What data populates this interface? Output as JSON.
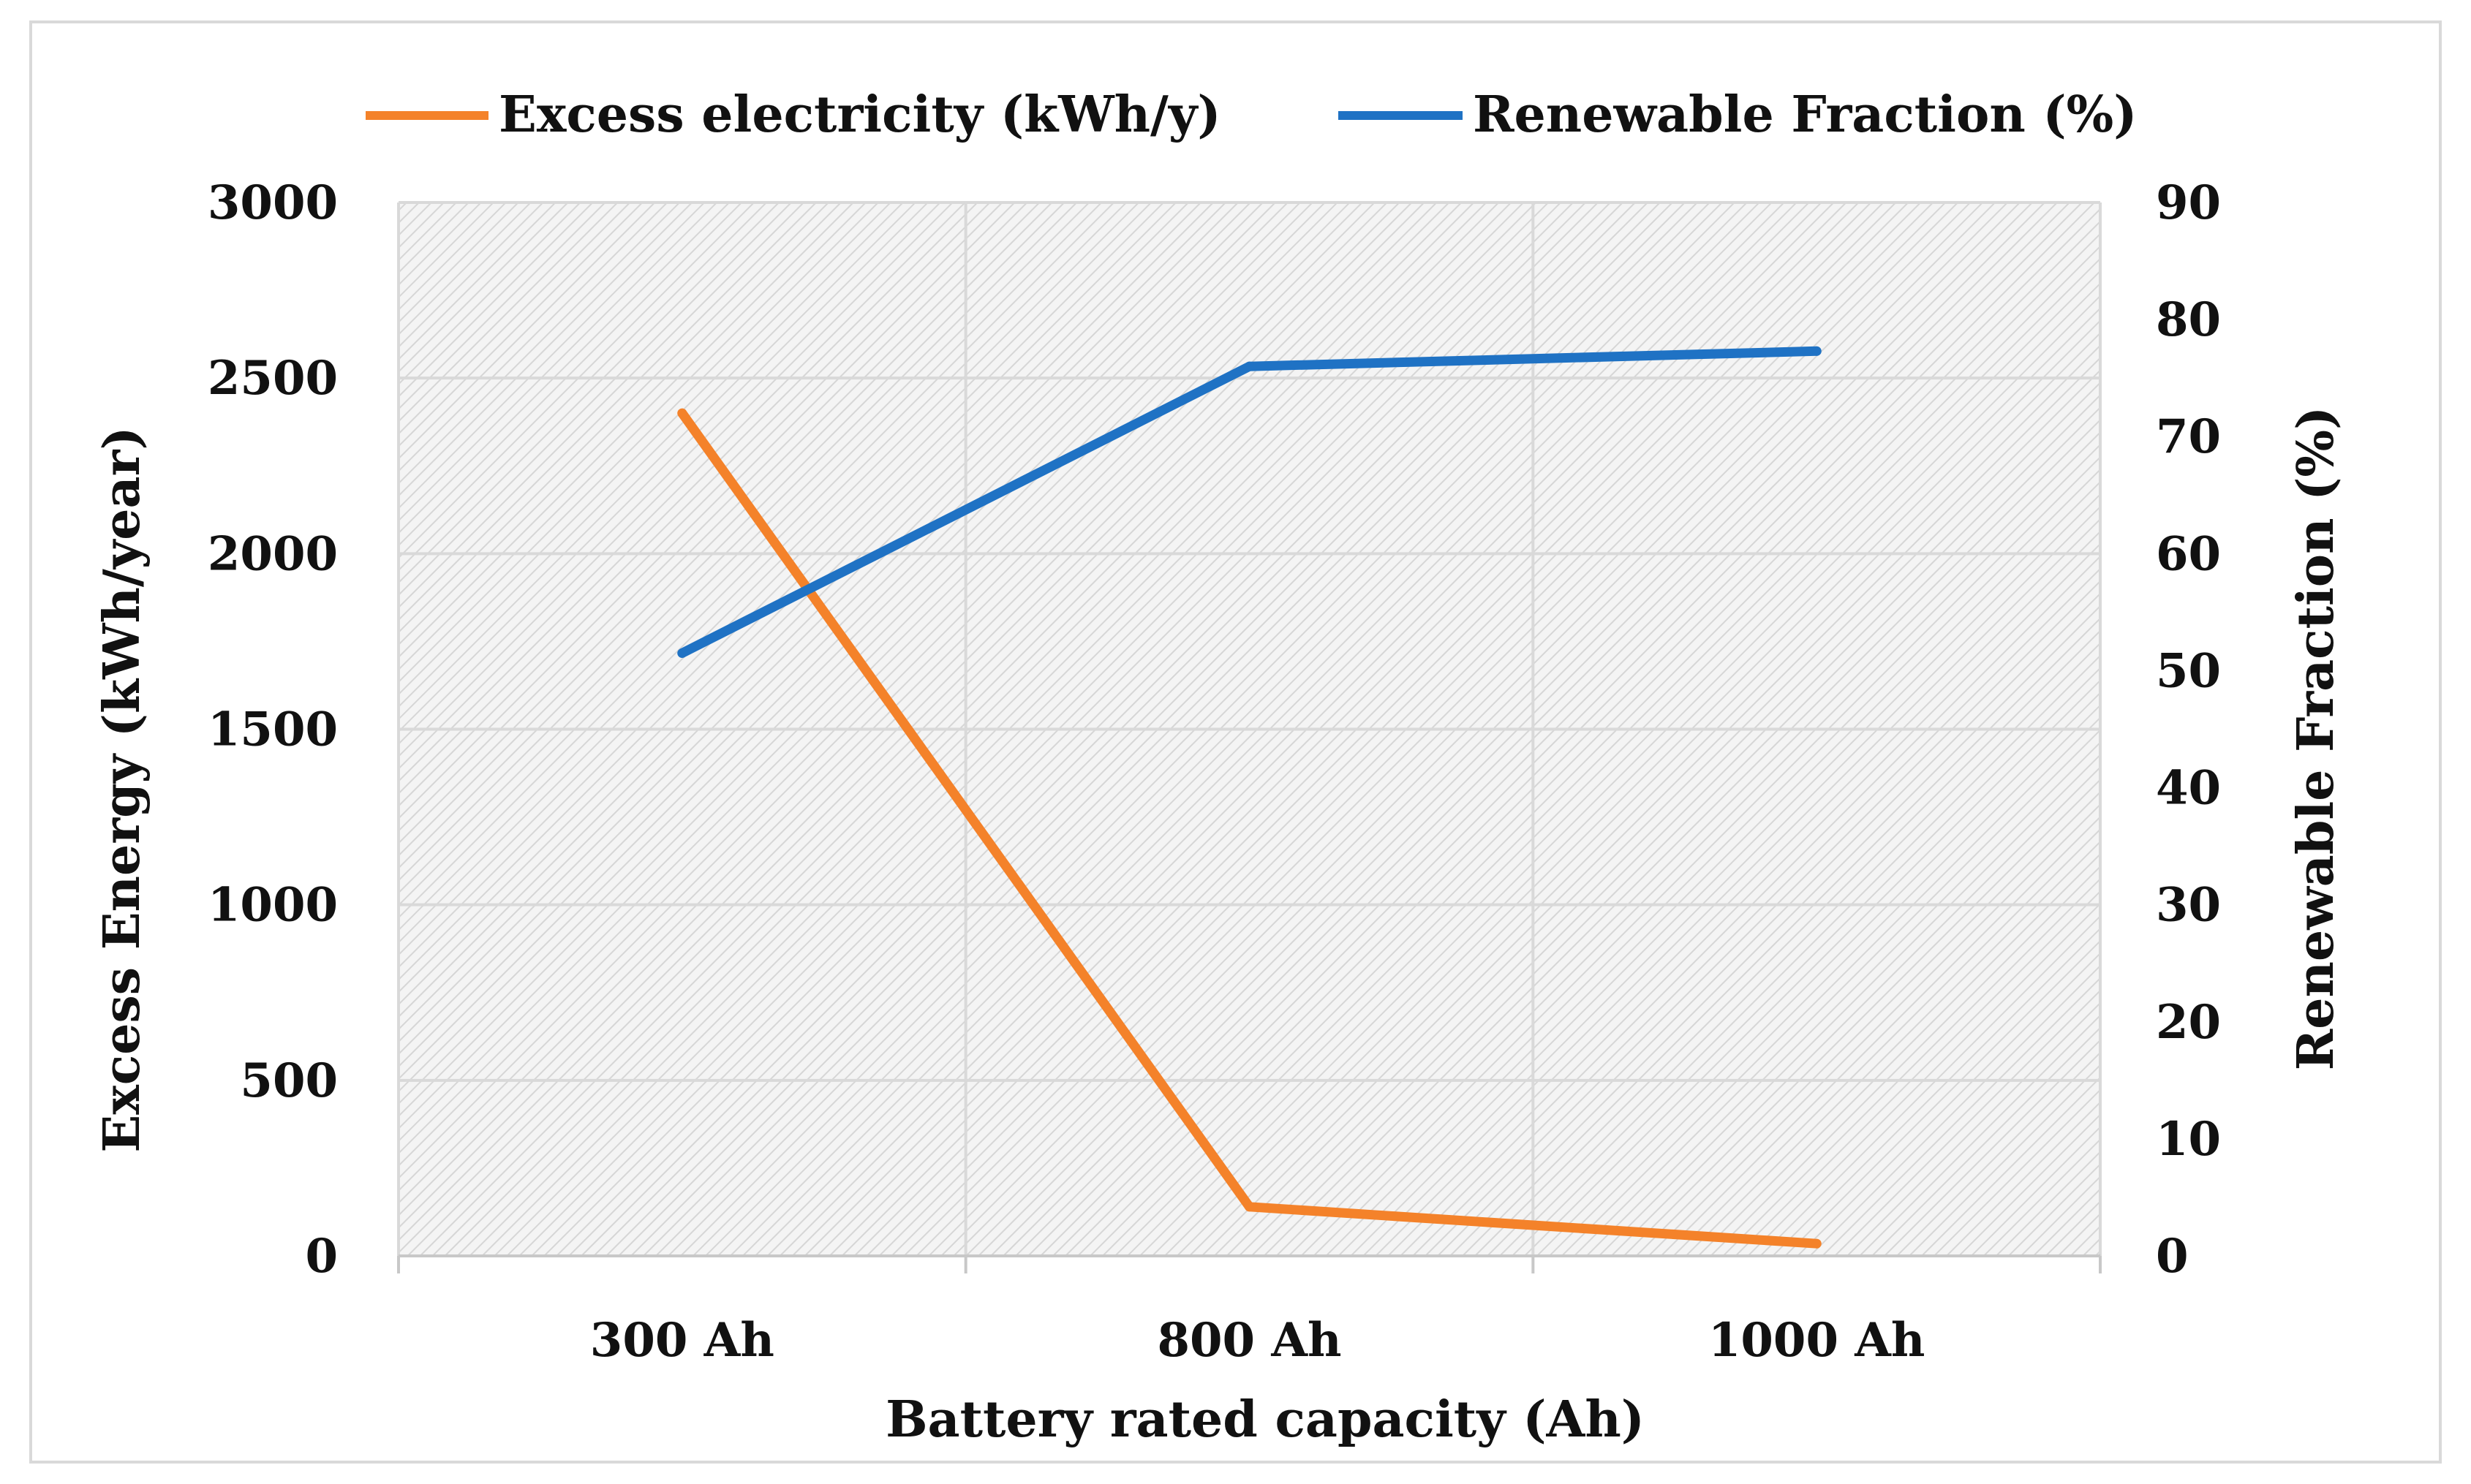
{
  "chart_data": {
    "type": "line",
    "title": "",
    "categories": [
      "300 Ah",
      "800 Ah",
      "1000 Ah"
    ],
    "xlabel": "Battery rated capacity (Ah)",
    "ylabel": "Excess Energy (kWh/year)",
    "y2label": "Renewable Fraction (%)",
    "ylim": [
      0,
      3000
    ],
    "y2lim": [
      0,
      90
    ],
    "yticks": [
      "0",
      "500",
      "1000",
      "1500",
      "2000",
      "2500",
      "3000"
    ],
    "y2ticks": [
      "0",
      "10",
      "20",
      "30",
      "40",
      "50",
      "60",
      "70",
      "80",
      "90"
    ],
    "grid": true,
    "legend_position": "top",
    "series": [
      {
        "name": "Excess electricity (kWh/y)",
        "axis": "left",
        "color": "#F4822A",
        "values": [
          2400,
          140,
          35
        ]
      },
      {
        "name": "Renewable Fraction (%)",
        "axis": "right",
        "color": "#1F72C4",
        "values": [
          51.5,
          76,
          77.3
        ]
      }
    ]
  }
}
